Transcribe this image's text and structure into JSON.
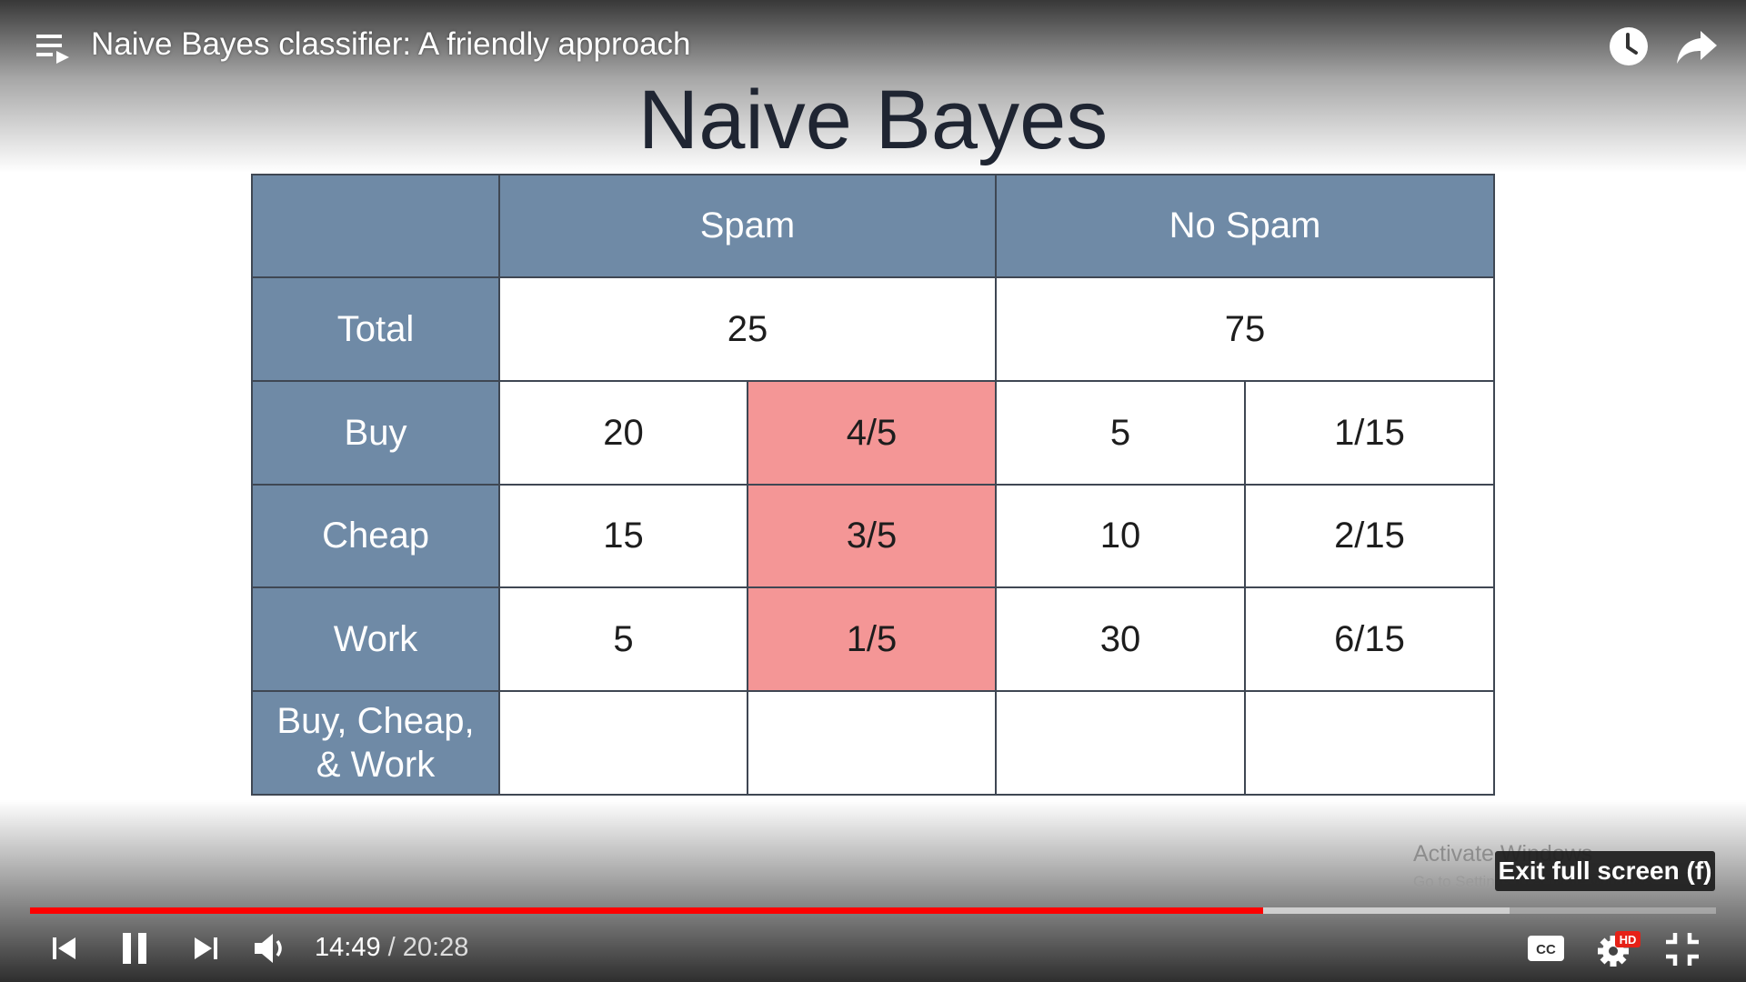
{
  "header": {
    "video_title": "Naive Bayes classifier: A friendly approach",
    "icons": [
      "playlist-icon",
      "watch-later-icon",
      "share-icon"
    ]
  },
  "slide": {
    "title": "Naive Bayes",
    "table": {
      "column_headers": [
        "",
        "Spam",
        "No Spam"
      ],
      "total_row": {
        "label": "Total",
        "values": [
          "25",
          "75"
        ]
      },
      "rows": [
        {
          "label": "Buy",
          "cells": [
            "20",
            "4/5",
            "5",
            "1/15"
          ]
        },
        {
          "label": "Cheap",
          "cells": [
            "15",
            "3/5",
            "10",
            "2/15"
          ]
        },
        {
          "label": "Work",
          "cells": [
            "5",
            "1/5",
            "30",
            "6/15"
          ]
        },
        {
          "label_line1": "Buy, Cheap,",
          "label_line2": "& Work",
          "cells": [
            "",
            "",
            "",
            ""
          ]
        }
      ]
    },
    "colors": {
      "header": "#6f8aa6",
      "highlight": "#f49696",
      "border": "#3f4753"
    }
  },
  "overlay": {
    "activate_title": "Activate Windows",
    "activate_subtitle": "Go to Settings to activate Windows.",
    "tooltip": "Exit full screen (f)"
  },
  "player": {
    "time_current": "14:49",
    "time_separator": "/",
    "time_total": "20:28",
    "progress_fraction": 0.7314,
    "buffered_fraction": 0.8777,
    "hd_badge": "HD",
    "cc_label": "CC",
    "icons": [
      "previous-icon",
      "pause-icon",
      "next-icon",
      "volume-icon",
      "captions-icon",
      "settings-icon",
      "exit-fullscreen-icon"
    ],
    "colors": {
      "played": "#ff0000",
      "hd_badge": "#e62117"
    }
  }
}
